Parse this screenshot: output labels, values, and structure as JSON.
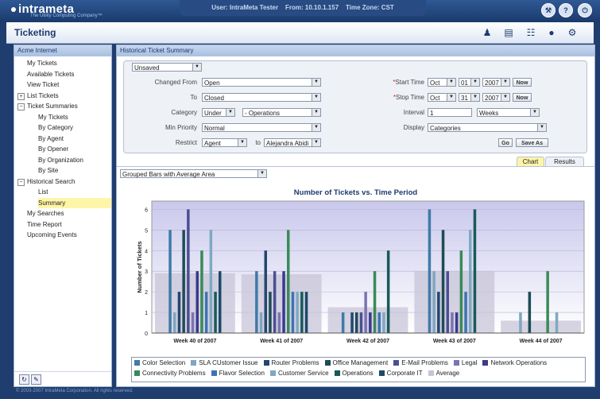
{
  "app": {
    "logo_text": "intrameta",
    "tagline": "The Utility Computing Company™",
    "user_label": "User:",
    "user_value": "IntraMeta Tester",
    "from_label": "From:",
    "from_value": "10.10.1.157",
    "tz_label": "Time Zone:",
    "tz_value": "CST",
    "top_icons": [
      "wrench-icon",
      "help-icon",
      "power-icon"
    ],
    "page_title": "Ticketing",
    "title_icons": [
      "people-icon",
      "notepad-icon",
      "network-icon",
      "globe-icon",
      "gears-icon"
    ],
    "footer": "© 2003-2007 IntraMeta Corporation.  All rights reserved."
  },
  "sidebar": {
    "header": "Acme Internet",
    "items": [
      {
        "label": "My Tickets",
        "indent": 0
      },
      {
        "label": "Available Tickets",
        "indent": 0
      },
      {
        "label": "View Ticket",
        "indent": 0
      },
      {
        "label": "List Tickets",
        "indent": 0,
        "expander": "+"
      },
      {
        "label": "Ticket Summaries",
        "indent": 0,
        "expander": "−"
      },
      {
        "label": "My Tickets",
        "indent": 1
      },
      {
        "label": "By Category",
        "indent": 1
      },
      {
        "label": "By Agent",
        "indent": 1
      },
      {
        "label": "By Opener",
        "indent": 1
      },
      {
        "label": "By Organization",
        "indent": 1
      },
      {
        "label": "By Site",
        "indent": 1
      },
      {
        "label": "Historical Search",
        "indent": 0,
        "expander": "−"
      },
      {
        "label": "List",
        "indent": 1
      },
      {
        "label": "Summary",
        "indent": 1,
        "selected": true
      },
      {
        "label": "My Searches",
        "indent": 0
      },
      {
        "label": "Time Report",
        "indent": 0
      },
      {
        "label": "Upcoming Events",
        "indent": 0
      }
    ]
  },
  "main": {
    "header": "Historical Ticket Summary",
    "saved_search": "Unsaved",
    "form": {
      "changed_from_label": "Changed From",
      "changed_from_value": "Open",
      "to_label": "To",
      "to_value": "Closed",
      "category_label": "Category",
      "category_op": "Under",
      "category_value": "- Operations",
      "min_priority_label": "Min Priority",
      "min_priority_value": "Normal",
      "restrict_label": "Restrict",
      "restrict_value": "Agent",
      "restrict_to_label": "to",
      "restrict_to_value": "Alejandra Abidi",
      "start_time_label": "Start Time",
      "start_month": "Oct",
      "start_day": "01",
      "start_year": "2007",
      "stop_time_label": "Stop Time",
      "stop_month": "Oct",
      "stop_day": "31",
      "stop_year": "2007",
      "now_label": "Now",
      "interval_label": "Interval",
      "interval_value": "1",
      "interval_unit": "Weeks",
      "display_label": "Display",
      "display_value": "Categories",
      "go_label": "Go",
      "save_as_label": "Save As",
      "required_mark": "*"
    },
    "tabs": {
      "chart": "Chart",
      "results": "Results",
      "active": "chart"
    },
    "chart_type_select": "Grouped Bars with Average Area"
  },
  "chart_data": {
    "type": "bar",
    "title": "Number of Tickets vs. Time Period",
    "xlabel": "",
    "ylabel": "Number of Tickets",
    "ylim": [
      0,
      6.4
    ],
    "yticks": [
      0,
      1,
      2,
      3,
      4,
      5,
      6
    ],
    "grid": true,
    "legend_position": "bottom",
    "categories": [
      "Week 40 of 2007",
      "Week 41 of 2007",
      "Week 42 of 2007",
      "Week 43 of 2007",
      "Week 44 of 2007"
    ],
    "series": [
      {
        "name": "Color Selection",
        "color": "#3f7aa8",
        "values": [
          5,
          3,
          1,
          6,
          0
        ]
      },
      {
        "name": "SLA CUstomer Issue",
        "color": "#7fa6bf",
        "values": [
          1,
          1,
          0,
          3,
          1
        ]
      },
      {
        "name": "Router Problems",
        "color": "#24476e",
        "values": [
          2,
          4,
          1,
          2,
          0
        ]
      },
      {
        "name": "Office Management",
        "color": "#1d4c55",
        "values": [
          5,
          2,
          1,
          5,
          2
        ]
      },
      {
        "name": "E-Mail Problems",
        "color": "#4b4f92",
        "values": [
          6,
          3,
          1,
          3,
          0
        ]
      },
      {
        "name": "Legal",
        "color": "#7b73b3",
        "values": [
          1,
          1,
          2,
          1,
          0
        ]
      },
      {
        "name": "Network Operations",
        "color": "#3b3a8f",
        "values": [
          3,
          3,
          1,
          1,
          0
        ]
      },
      {
        "name": "Connectivity Problems",
        "color": "#3a8a58",
        "values": [
          4,
          5,
          3,
          4,
          3
        ]
      },
      {
        "name": "Flavor Selection",
        "color": "#3e73b4",
        "values": [
          2,
          2,
          1,
          2,
          0
        ]
      },
      {
        "name": "Customer Service",
        "color": "#7fa9c0",
        "values": [
          5,
          2,
          1,
          5,
          1
        ]
      },
      {
        "name": "Operations",
        "color": "#185a5a",
        "values": [
          2,
          2,
          4,
          6,
          0
        ]
      },
      {
        "name": "Corporate IT",
        "color": "#1b4a68",
        "values": [
          3,
          2,
          0,
          0,
          0
        ]
      },
      {
        "name": "Average",
        "color": "#c8c4d8",
        "values": [
          2.9,
          2.85,
          1.25,
          3.0,
          0.6
        ]
      }
    ]
  }
}
